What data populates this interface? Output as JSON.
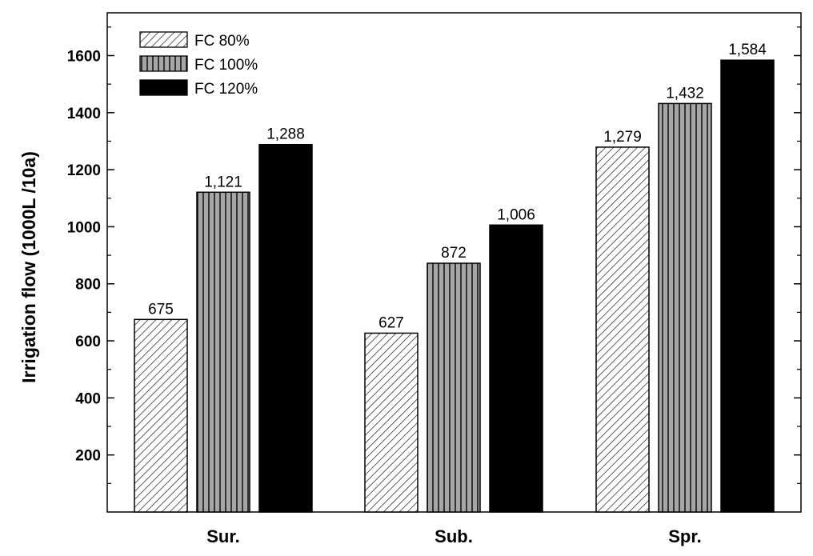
{
  "chart_data": {
    "type": "bar",
    "categories": [
      "Sur.",
      "Sub.",
      "Spr."
    ],
    "series": [
      {
        "name": "FC 80%",
        "values": [
          675,
          627,
          1279
        ],
        "labels": [
          "675",
          "627",
          "1,279"
        ],
        "pattern": "diagonal-hatch",
        "color": "#ffffff"
      },
      {
        "name": "FC 100%",
        "values": [
          1121,
          872,
          1432
        ],
        "labels": [
          "1,121",
          "872",
          "1,432"
        ],
        "pattern": "vertical-stripes",
        "color": "#8c8c8c"
      },
      {
        "name": "FC 120%",
        "values": [
          1288,
          1006,
          1584
        ],
        "labels": [
          "1,288",
          "1,006",
          "1,584"
        ],
        "pattern": "solid",
        "color": "#000000"
      }
    ],
    "title": "",
    "xlabel": "",
    "ylabel": "Irrigation flow (1000L /10a)",
    "ylim": [
      0,
      1750
    ],
    "yticks": [
      200,
      400,
      600,
      800,
      1000,
      1200,
      1400,
      1600
    ],
    "grid": false,
    "legend": "top-left"
  }
}
